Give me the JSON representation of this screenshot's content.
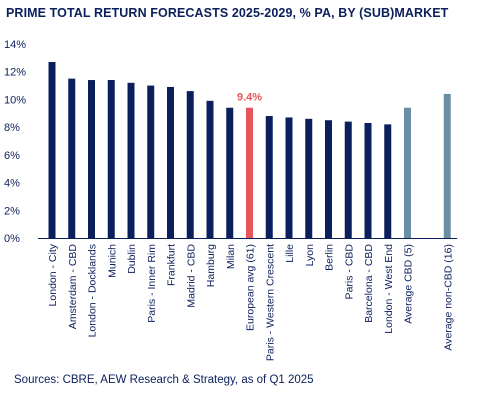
{
  "chart_data": {
    "type": "bar",
    "title": "PRIME TOTAL RETURN FORECASTS 2025-2029, % PA, BY (SUB)MARKET",
    "ylim": [
      0,
      14
    ],
    "yticks": [
      "0%",
      "2%",
      "4%",
      "6%",
      "8%",
      "10%",
      "12%",
      "14%"
    ],
    "grid": false,
    "categories": [
      "London - City",
      "Amsterdam - CBD",
      "London - Docklands",
      "Munich",
      "Dublin",
      "Paris - Inner Rim",
      "Frankfurt",
      "Madrid - CBD",
      "Hamburg",
      "Milan",
      "European avg (61)",
      "Paris - Western Crescent",
      "Lille",
      "Lyon",
      "Berlin",
      "Paris - CBD",
      "Barcelona - CBD",
      "London - West End",
      "Average CBD (5)",
      "Average non-CBD (16)"
    ],
    "values": [
      12.7,
      11.5,
      11.4,
      11.4,
      11.2,
      11.0,
      10.9,
      10.6,
      9.9,
      9.4,
      9.4,
      8.8,
      8.7,
      8.6,
      8.5,
      8.4,
      8.3,
      8.2,
      9.4,
      10.4
    ],
    "colors": [
      "#0b1f5c",
      "#0b1f5c",
      "#0b1f5c",
      "#0b1f5c",
      "#0b1f5c",
      "#0b1f5c",
      "#0b1f5c",
      "#0b1f5c",
      "#0b1f5c",
      "#0b1f5c",
      "#e5575c",
      "#0b1f5c",
      "#0b1f5c",
      "#0b1f5c",
      "#0b1f5c",
      "#0b1f5c",
      "#0b1f5c",
      "#0b1f5c",
      "#6a8ea4",
      "#6a8ea4"
    ],
    "data_labels": [
      "",
      "",
      "",
      "",
      "",
      "",
      "",
      "",
      "",
      "",
      "9.4%",
      "",
      "",
      "",
      "",
      "",
      "",
      "",
      "",
      ""
    ],
    "highlight_color": "#e5575c",
    "axis_color": "#0b1f5c",
    "source": "Sources: CBRE, AEW Research & Strategy, as of Q1 2025"
  }
}
